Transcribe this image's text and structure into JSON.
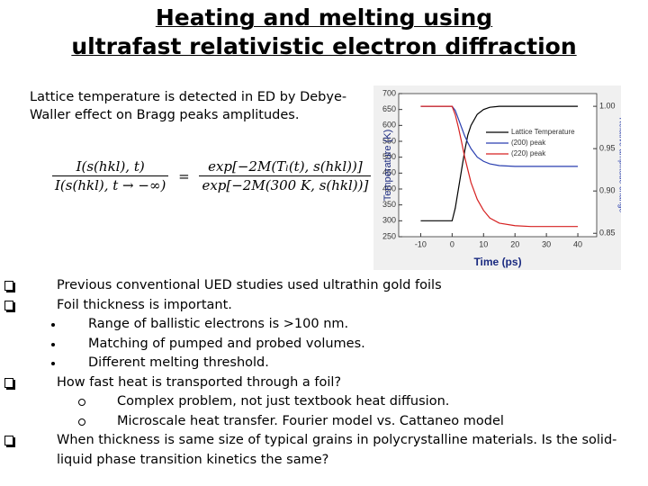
{
  "header": {
    "title_lines": [
      "Heating and melting using",
      "ultrafast relativistic electron diffraction"
    ]
  },
  "intro": "Lattice temperature is detected in ED by Debye-Waller effect on Bragg peaks amplitudes.",
  "equation": {
    "numerator_left": "I(s(hkl), t)",
    "denominator_left": "I(s(hkl), t → −∞)",
    "equals": "=",
    "numerator_right": "exp[−2M(Tₗ(t), s(hkl))]",
    "denominator_right": "exp[−2M(300 K, s(hkl))]"
  },
  "chart_data": {
    "type": "line",
    "xlabel": "Time (ps)",
    "ylabel": "Temperature (K)",
    "y2label": "Relative amplitude change",
    "x": [
      -10,
      -5,
      0,
      1,
      2,
      3,
      4,
      5,
      6,
      8,
      10,
      12,
      15,
      20,
      25,
      30,
      35,
      40
    ],
    "series": [
      {
        "name": "Lattice Temperature",
        "color": "#000000",
        "values": [
          300,
          300,
          300,
          340,
          400,
          460,
          520,
          570,
          600,
          635,
          650,
          657,
          660,
          660,
          660,
          660,
          660,
          660
        ]
      },
      {
        "name": "(200) peak",
        "color": "#2a3fb0",
        "axis": "y2",
        "values": [
          1,
          1,
          1,
          0.995,
          0.985,
          0.975,
          0.965,
          0.957,
          0.95,
          0.94,
          0.935,
          0.932,
          0.93,
          0.929,
          0.929,
          0.929,
          0.929,
          0.929
        ]
      },
      {
        "name": "(220) peak",
        "color": "#d62020",
        "axis": "y2",
        "values": [
          1,
          1,
          1,
          0.99,
          0.975,
          0.958,
          0.94,
          0.925,
          0.91,
          0.89,
          0.877,
          0.868,
          0.862,
          0.859,
          0.858,
          0.858,
          0.858,
          0.858
        ]
      }
    ],
    "xlim": [
      -17,
      46
    ],
    "xticks": [
      -10,
      0,
      10,
      20,
      30,
      40
    ],
    "ylim": [
      250,
      700
    ],
    "yticks": [
      250,
      300,
      350,
      400,
      450,
      500,
      550,
      600,
      650,
      700
    ],
    "y2lim": [
      0.846,
      1.015
    ],
    "y2ticks": [
      0.85,
      {
        "value": 0.9,
        "label": "0.90"
      },
      0.95,
      {
        "value": 1,
        "label": "1.00"
      }
    ],
    "grid": false
  },
  "bullets": [
    {
      "text": "Previous conventional UED studies used ultrathin gold foils",
      "sub": []
    },
    {
      "text": "Foil thickness is important.",
      "sub": [
        {
          "text": "Range of ballistic electrons is >100 nm."
        },
        {
          "text": "Matching of pumped and probed volumes."
        },
        {
          "text": "Different melting threshold."
        }
      ]
    },
    {
      "text": "How fast heat is transported through a foil?",
      "sub": [
        {
          "text": "Complex problem, not just textbook heat diffusion."
        },
        {
          "text": "Microscale heat transfer. Fourier model vs. Cattaneo model"
        }
      ]
    },
    {
      "text": "When thickness is same size of typical grains in polycrystalline materials. Is the solid-liquid phase transition kinetics the same?",
      "sub": []
    }
  ]
}
